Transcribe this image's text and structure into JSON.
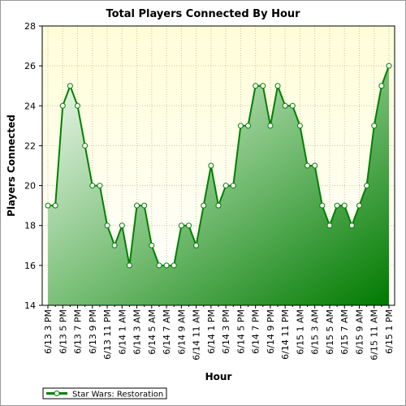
{
  "chart_data": {
    "type": "area",
    "title": "Total Players Connected By Hour",
    "x_label": "Hour",
    "y_label": "Players Connected",
    "categories": [
      "6/13 3 PM",
      null,
      "6/13 5 PM",
      null,
      "6/13 7 PM",
      null,
      "6/13 9 PM",
      null,
      "6/13 11 PM",
      null,
      "6/14 1 AM",
      null,
      "6/14 3 AM",
      null,
      "6/14 5 AM",
      null,
      "6/14 7 AM",
      null,
      "6/14 9 AM",
      null,
      "6/14 11 AM",
      null,
      "6/14 1 PM",
      null,
      "6/14 3 PM",
      null,
      "6/14 5 PM",
      null,
      "6/14 7 PM",
      null,
      "6/14 9 PM",
      null,
      "6/14 11 PM",
      null,
      "6/15 1 AM",
      null,
      "6/15 3 AM",
      null,
      "6/15 5 AM",
      null,
      "6/15 7 AM",
      null,
      "6/15 9 AM",
      null,
      "6/15 11 AM",
      null,
      "6/15 1 PM"
    ],
    "series": [
      {
        "name": "Star Wars: Restoration",
        "color": "#008000",
        "values": [
          19,
          19,
          24,
          25,
          24,
          22,
          20,
          20,
          18,
          17,
          18,
          16,
          19,
          19,
          17,
          16,
          16,
          16,
          18,
          18,
          17,
          19,
          21,
          19,
          20,
          20,
          23,
          23,
          25,
          25,
          23,
          25,
          24,
          24,
          23,
          21,
          21,
          19,
          18,
          19,
          19,
          18,
          19,
          20,
          23,
          25,
          26
        ]
      }
    ],
    "ylim": [
      14,
      28
    ],
    "yticks": [
      14,
      16,
      18,
      20,
      22,
      24,
      26,
      28
    ],
    "grid": true
  }
}
